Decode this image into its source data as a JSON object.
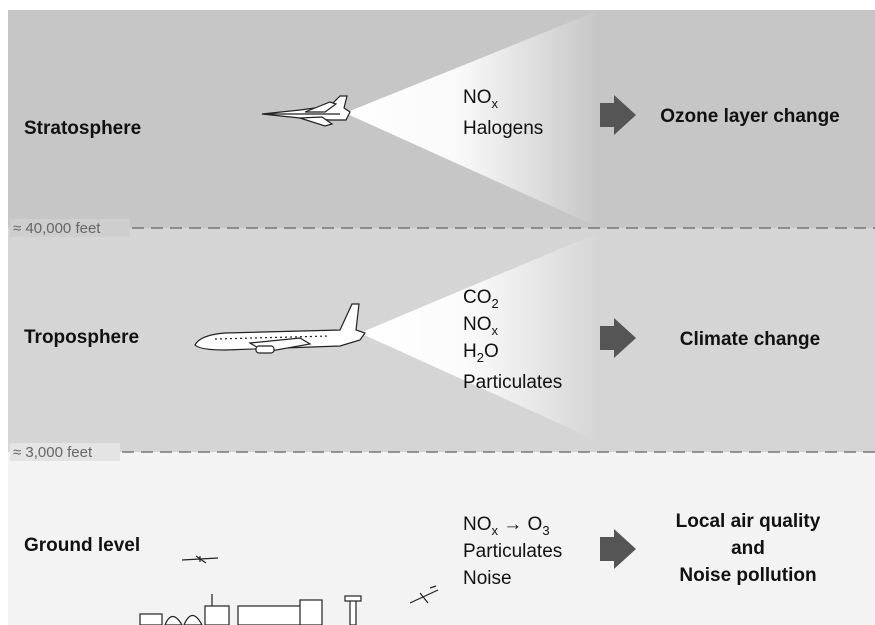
{
  "layers": [
    {
      "name": "Stratosphere",
      "emissions": [
        {
          "parts": [
            {
              "text": "NO"
            },
            {
              "sub": "x"
            }
          ]
        },
        {
          "parts": [
            {
              "text": "Halogens"
            }
          ]
        }
      ],
      "effect": [
        "Ozone layer change"
      ]
    },
    {
      "name": "Troposphere",
      "emissions": [
        {
          "parts": [
            {
              "text": "CO"
            },
            {
              "sub": "2"
            }
          ]
        },
        {
          "parts": [
            {
              "text": "NO"
            },
            {
              "sub": "x"
            }
          ]
        },
        {
          "parts": [
            {
              "text": "H"
            },
            {
              "sub": "2"
            },
            {
              "text": "O"
            }
          ]
        },
        {
          "parts": [
            {
              "text": "Particulates"
            }
          ]
        }
      ],
      "effect": [
        "Climate change"
      ]
    },
    {
      "name": "Ground level",
      "emissions": [
        {
          "parts": [
            {
              "text": "NO"
            },
            {
              "sub": "x"
            },
            {
              "text": " → O"
            },
            {
              "sub": "3"
            }
          ]
        },
        {
          "parts": [
            {
              "text": "Particulates"
            }
          ]
        },
        {
          "parts": [
            {
              "text": "Noise"
            }
          ]
        }
      ],
      "effect": [
        "Local air quality",
        "and",
        "Noise pollution"
      ]
    }
  ],
  "boundaries": [
    "≈ 40,000 feet",
    "≈ 3,000 feet"
  ]
}
